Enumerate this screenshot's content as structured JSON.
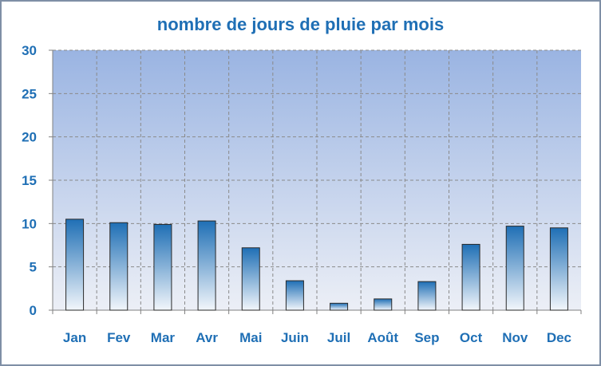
{
  "chart_data": {
    "type": "bar",
    "title": "nombre de jours de pluie par mois",
    "xlabel": "",
    "ylabel": "",
    "ylim": [
      0,
      30
    ],
    "yticks": [
      0,
      5,
      10,
      15,
      20,
      25,
      30
    ],
    "grid": true,
    "categories": [
      "Jan",
      "Fev",
      "Mar",
      "Avr",
      "Mai",
      "Juin",
      "Juil",
      "Août",
      "Sep",
      "Oct",
      "Nov",
      "Dec"
    ],
    "values": [
      10.5,
      10.1,
      9.9,
      10.3,
      7.2,
      3.4,
      0.8,
      1.3,
      3.3,
      7.6,
      9.7,
      9.5
    ]
  },
  "colors": {
    "title": "#1f6fb5",
    "labels": "#1f6fb5",
    "bar_top": "#1f6fb5",
    "bar_bottom": "#f2f6fb",
    "plot_top": "#9ab4e2",
    "plot_bottom": "#eceff6",
    "grid": "#8a8a8a",
    "frame": "#7f8fa6"
  }
}
